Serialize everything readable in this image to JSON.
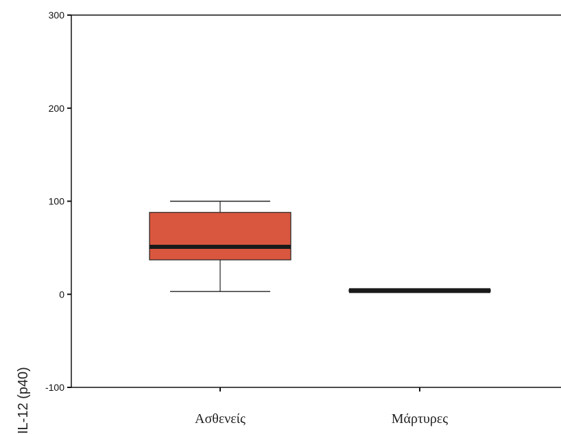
{
  "chart_data": {
    "type": "boxplot",
    "ylabel": "IL-12 (p40)",
    "xlabel": "",
    "ylim": [
      -100,
      300
    ],
    "yticks": [
      300,
      200,
      100,
      0,
      -100
    ],
    "ytick_labels": [
      "300",
      "200",
      "100",
      "0",
      "-100"
    ],
    "grid": false,
    "categories": [
      "Ασθενείς",
      "Μάρτυρες"
    ],
    "boxes": [
      {
        "category": "Ασθενείς",
        "whisker_low": 3,
        "q1": 37,
        "median": 51,
        "q3": 88,
        "whisker_high": 100
      },
      {
        "category": "Μάρτυρες",
        "whisker_low": 3,
        "q1": 3,
        "median": 4,
        "q3": 5,
        "whisker_high": 5
      }
    ]
  },
  "colors": {
    "box_fill": "#d9573f",
    "median": "#1a1a1a",
    "axis": "#111111"
  }
}
